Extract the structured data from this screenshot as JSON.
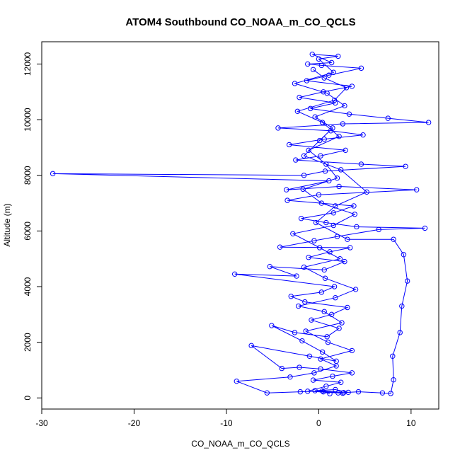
{
  "chart_data": {
    "type": "scatter",
    "title": "ATOM4 Southbound CO_NOAA_m_CO_QCLS",
    "xlabel": "CO_NOAA_m_CO_QCLS",
    "ylabel": "Altitude (m)",
    "xlim": [
      -30,
      13
    ],
    "ylim": [
      -400,
      12800
    ],
    "x_ticks": [
      -30,
      -20,
      -10,
      0,
      10
    ],
    "y_ticks": [
      0,
      2000,
      4000,
      6000,
      8000,
      10000,
      12000
    ],
    "grid": false,
    "connected": true,
    "marker": "open-circle",
    "color": "#0000ff",
    "series": [
      {
        "points": [
          [
            1.2,
            150
          ],
          [
            0.5,
            220
          ],
          [
            2.1,
            180
          ],
          [
            -0.4,
            260
          ],
          [
            1.8,
            300
          ],
          [
            3.2,
            200
          ],
          [
            2.6,
            170
          ],
          [
            -1.2,
            240
          ],
          [
            0.8,
            420
          ],
          [
            2.4,
            560
          ],
          [
            -0.6,
            640
          ],
          [
            1.5,
            780
          ],
          [
            3.6,
            900
          ],
          [
            0.2,
            1040
          ],
          [
            -2.1,
            1100
          ],
          [
            -4.0,
            1060
          ],
          [
            -7.3,
            1880
          ],
          [
            -1.0,
            1500
          ],
          [
            1.9,
            1320
          ],
          [
            0.4,
            1650
          ],
          [
            -1.8,
            2050
          ],
          [
            -5.1,
            2600
          ],
          [
            -2.6,
            2350
          ],
          [
            0.9,
            2200
          ],
          [
            2.2,
            2500
          ],
          [
            -0.8,
            2800
          ],
          [
            1.4,
            3000
          ],
          [
            3.1,
            3250
          ],
          [
            -1.5,
            3450
          ],
          [
            -3.0,
            3650
          ],
          [
            0.3,
            3800
          ],
          [
            1.7,
            4000
          ],
          [
            -9.1,
            4450
          ],
          [
            -2.4,
            4380
          ],
          [
            -5.3,
            4720
          ],
          [
            0.6,
            4600
          ],
          [
            2.8,
            4900
          ],
          [
            -1.1,
            5050
          ],
          [
            1.2,
            5250
          ],
          [
            3.4,
            5400
          ],
          [
            -4.2,
            5420
          ],
          [
            -0.5,
            5650
          ],
          [
            2.0,
            5800
          ],
          [
            6.5,
            6050
          ],
          [
            11.5,
            6100
          ],
          [
            4.1,
            6150
          ],
          [
            0.8,
            6300
          ],
          [
            -1.9,
            6450
          ],
          [
            1.6,
            6650
          ],
          [
            3.8,
            6900
          ],
          [
            -3.4,
            7100
          ],
          [
            0.0,
            7300
          ],
          [
            10.6,
            7480
          ],
          [
            2.2,
            7600
          ],
          [
            -3.5,
            7480
          ],
          [
            1.1,
            7800
          ],
          [
            -28.8,
            8060
          ],
          [
            -1.6,
            8000
          ],
          [
            0.7,
            8150
          ],
          [
            9.4,
            8320
          ],
          [
            4.6,
            8400
          ],
          [
            -2.5,
            8550
          ],
          [
            0.2,
            8700
          ],
          [
            2.9,
            8900
          ],
          [
            -3.2,
            9100
          ],
          [
            0.6,
            9300
          ],
          [
            4.8,
            9450
          ],
          [
            1.3,
            9600
          ],
          [
            -4.4,
            9700
          ],
          [
            2.6,
            9850
          ],
          [
            11.9,
            9900
          ],
          [
            7.5,
            10050
          ],
          [
            3.3,
            10200
          ],
          [
            -0.9,
            10400
          ],
          [
            1.8,
            10600
          ],
          [
            -2.1,
            10800
          ],
          [
            0.5,
            11000
          ],
          [
            3.6,
            11200
          ],
          [
            -1.3,
            11400
          ],
          [
            1.1,
            11600
          ],
          [
            4.6,
            11850
          ],
          [
            0.3,
            11950
          ],
          [
            -1.2,
            12000
          ],
          [
            1.4,
            12050
          ],
          [
            -0.7,
            12350
          ],
          [
            2.1,
            12280
          ],
          [
            0.0,
            12180
          ],
          [
            1.6,
            11700
          ],
          [
            -2.6,
            11300
          ],
          [
            0.9,
            10950
          ],
          [
            2.8,
            10500
          ],
          [
            -0.4,
            10100
          ],
          [
            1.5,
            9700
          ],
          [
            0.1,
            9250
          ],
          [
            -1.6,
            8700
          ],
          [
            2.4,
            8200
          ],
          [
            5.2,
            7400
          ],
          [
            1.8,
            6900
          ],
          [
            -0.3,
            6300
          ],
          [
            3.1,
            5700
          ],
          [
            8.1,
            5700
          ],
          [
            9.2,
            5150
          ],
          [
            9.6,
            4200
          ],
          [
            9.0,
            3300
          ],
          [
            8.8,
            2350
          ],
          [
            8.0,
            1500
          ],
          [
            8.1,
            650
          ],
          [
            7.8,
            160
          ],
          [
            6.9,
            180
          ],
          [
            4.3,
            220
          ],
          [
            2.7,
            190
          ],
          [
            0.4,
            250
          ],
          [
            -2.0,
            220
          ],
          [
            -5.6,
            180
          ],
          [
            -8.9,
            600
          ],
          [
            -3.1,
            750
          ],
          [
            -0.5,
            900
          ],
          [
            1.9,
            1150
          ],
          [
            0.2,
            1400
          ],
          [
            3.6,
            1700
          ],
          [
            1.0,
            2000
          ],
          [
            -1.4,
            2400
          ],
          [
            2.5,
            2700
          ],
          [
            0.6,
            3100
          ],
          [
            -2.2,
            3300
          ],
          [
            1.8,
            3600
          ],
          [
            4.0,
            3900
          ],
          [
            0.7,
            4300
          ],
          [
            -1.6,
            4700
          ],
          [
            2.3,
            5000
          ],
          [
            0.1,
            5400
          ],
          [
            -2.8,
            5900
          ],
          [
            1.6,
            6200
          ],
          [
            3.9,
            6600
          ],
          [
            0.3,
            7000
          ],
          [
            -1.7,
            7500
          ],
          [
            2.0,
            7900
          ],
          [
            0.8,
            8400
          ],
          [
            -1.1,
            8900
          ],
          [
            2.2,
            9400
          ],
          [
            0.4,
            9900
          ],
          [
            -2.3,
            10300
          ],
          [
            1.7,
            10700
          ],
          [
            3.0,
            11150
          ],
          [
            0.6,
            11500
          ],
          [
            -0.6,
            11800
          ]
        ]
      }
    ]
  }
}
